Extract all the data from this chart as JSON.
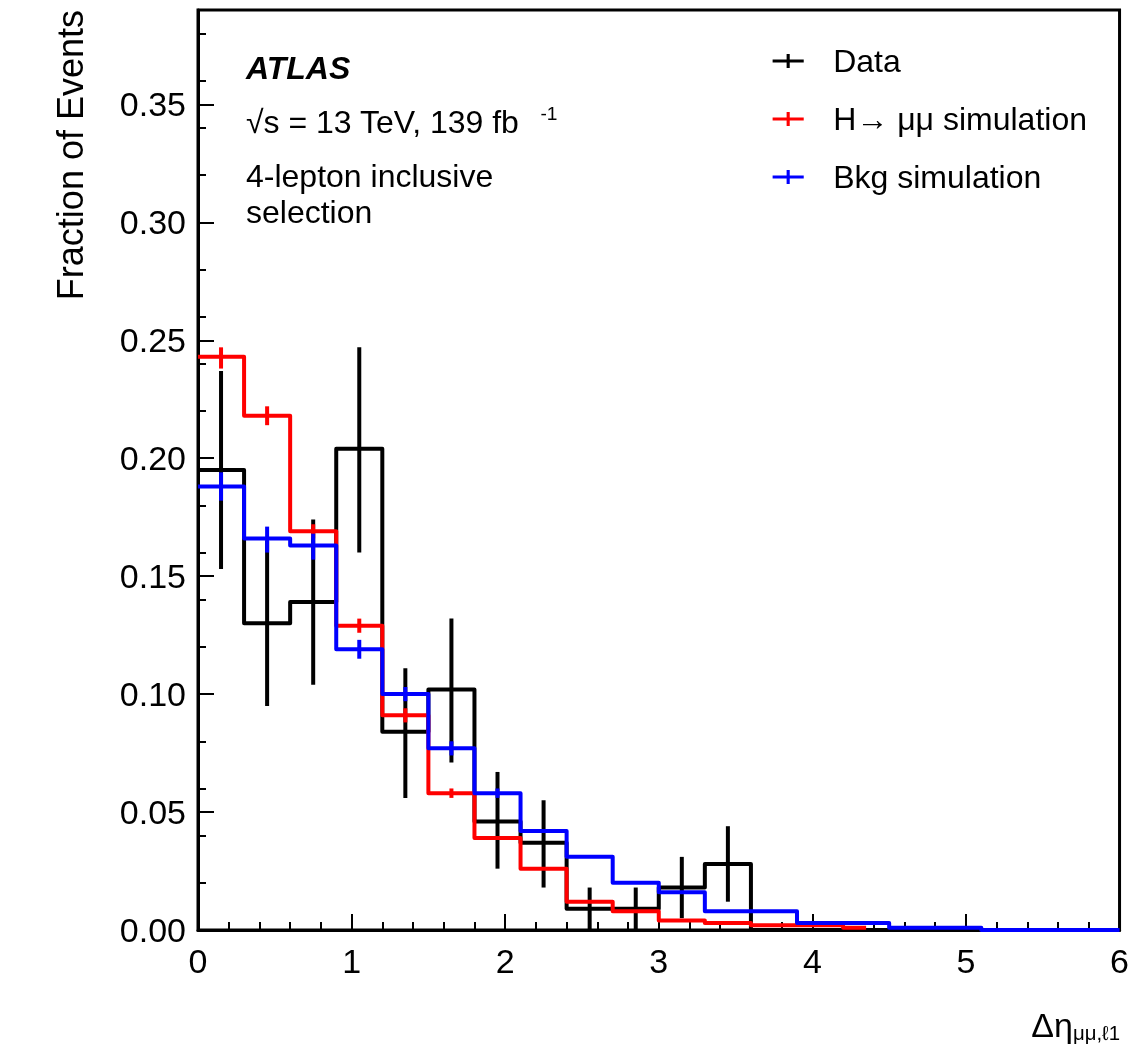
{
  "chart_data": {
    "type": "step",
    "xlabel": "Δη$_{μμ,ℓ1}$",
    "ylabel": "Fraction of Events",
    "annotations": [
      "ATLAS",
      "√s = 13 TeV, 139 fb$^{-1}$",
      "4-lepton inclusive selection"
    ],
    "x": [
      0,
      0.15,
      0.45,
      0.75,
      1.05,
      1.35,
      1.65,
      1.95,
      2.25,
      2.55,
      2.85,
      3.15,
      3.45,
      3.75,
      4.05,
      4.35,
      4.65,
      4.95,
      5.25,
      5.55,
      5.85,
      6
    ],
    "series": [
      {
        "name": "Data",
        "color": "#000000",
        "values": [
          0.195,
          0.195,
          0.13,
          0.139,
          0.204,
          0.084,
          0.102,
          0.046,
          0.037,
          0.009,
          0.009,
          0.018,
          0.028,
          0,
          0,
          0,
          0,
          0,
          0,
          0,
          0,
          0
        ],
        "errors": [
          null,
          [
            0.153,
            0.237
          ],
          [
            0.095,
            0.165
          ],
          [
            0.104,
            0.174
          ],
          [
            0.16,
            0.247
          ],
          [
            0.056,
            0.111
          ],
          [
            0.071,
            0.132
          ],
          [
            0.026,
            0.067
          ],
          [
            0.018,
            0.055
          ],
          [
            0,
            0.018
          ],
          [
            0,
            0.018
          ],
          [
            0.005,
            0.031
          ],
          [
            0.012,
            0.044
          ],
          null,
          null,
          null,
          null,
          null,
          null,
          null,
          null,
          null
        ]
      },
      {
        "name": "H→ μμ simulation",
        "color": "#ff0000",
        "values": [
          0.243,
          0.243,
          0.218,
          0.169,
          0.129,
          0.091,
          0.058,
          0.039,
          0.026,
          0.012,
          0.008,
          0.004,
          0.003,
          0.002,
          0.002,
          0.001,
          null,
          null,
          null,
          null,
          null,
          null
        ],
        "errors": [
          null,
          [
            0.238,
            0.247
          ],
          [
            0.214,
            0.222
          ],
          [
            0.166,
            0.172
          ],
          [
            0.126,
            0.132
          ],
          [
            0.088,
            0.094
          ],
          [
            0.056,
            0.06
          ],
          null,
          null,
          null,
          null,
          null,
          null,
          null,
          null,
          null,
          null,
          null,
          null,
          null,
          null,
          null
        ]
      },
      {
        "name": "Bkg simulation",
        "color": "#0000ff",
        "values": [
          0.188,
          0.188,
          0.166,
          0.163,
          0.119,
          0.1,
          0.077,
          0.058,
          0.042,
          0.031,
          0.02,
          0.016,
          0.008,
          0.008,
          0.003,
          0.003,
          0.001,
          0.001,
          0,
          0,
          0,
          0
        ],
        "errors": [
          null,
          [
            0.182,
            0.194
          ],
          [
            0.16,
            0.171
          ],
          [
            0.157,
            0.168
          ],
          [
            0.115,
            0.123
          ],
          [
            0.097,
            0.103
          ],
          [
            0.074,
            0.08
          ],
          [
            0.056,
            0.06
          ],
          null,
          null,
          null,
          null,
          null,
          null,
          null,
          null,
          null,
          null,
          null,
          null,
          null,
          null
        ]
      }
    ],
    "xlim": [
      0,
      6
    ],
    "xticks": [
      0,
      1,
      2,
      3,
      4,
      5,
      6
    ],
    "ylim": [
      0,
      0.39
    ],
    "yticks": [
      {
        "value": 0,
        "label": "0.00"
      },
      0.05,
      {
        "value": 0.1,
        "label": "0.10"
      },
      0.15,
      {
        "value": 0.2,
        "label": "0.20"
      },
      0.25,
      {
        "value": 0.3,
        "label": "0.30"
      },
      0.35
    ],
    "legend": "top right",
    "grid": false
  }
}
